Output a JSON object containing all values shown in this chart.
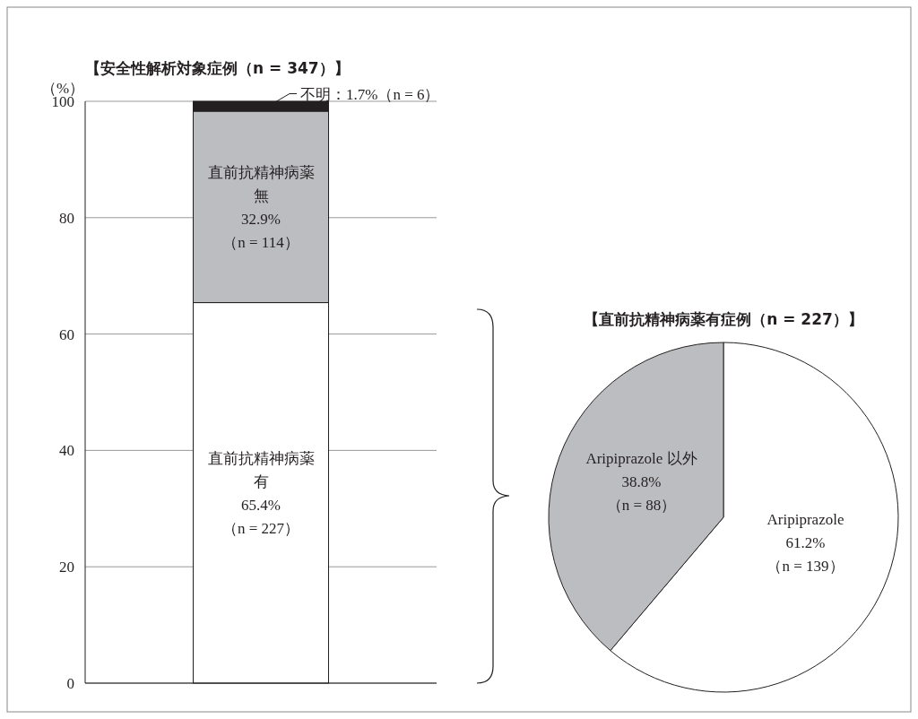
{
  "chart_data": [
    {
      "type": "bar",
      "stacked": true,
      "title": "【安全性解析対象症例（n = 347）】",
      "ylabel": "（%）",
      "categories": [
        null
      ],
      "ylim": [
        0,
        100
      ],
      "yticks": [
        0,
        20,
        40,
        60,
        80,
        100
      ],
      "grid": "y",
      "series": [
        {
          "color": "#ffffff",
          "values": [
            65.4
          ],
          "value_labels": [
            "直前抗精神病薬有\n65.4%\n（n = 227）"
          ]
        },
        {
          "color": "#bcbdc0",
          "values": [
            32.9
          ],
          "value_labels": [
            "直前抗精神病薬無\n32.9%\n（n = 114）"
          ]
        },
        {
          "color": "#231f20",
          "values": [
            1.7
          ],
          "value_labels": [
            "不明：1.7%（n = 6）"
          ]
        }
      ]
    },
    {
      "type": "pie",
      "title": "【直前抗精神病薬有症例（n = 227）】",
      "categories": [
        "Aripiprazole",
        "Aripiprazole 以外"
      ],
      "values": [
        61.2,
        38.8
      ],
      "colors": [
        "#ffffff",
        "#bcbdc0"
      ],
      "value_labels": [
        "61.2%\n（n = 139）",
        "38.8%\n（n = 88）"
      ]
    }
  ]
}
